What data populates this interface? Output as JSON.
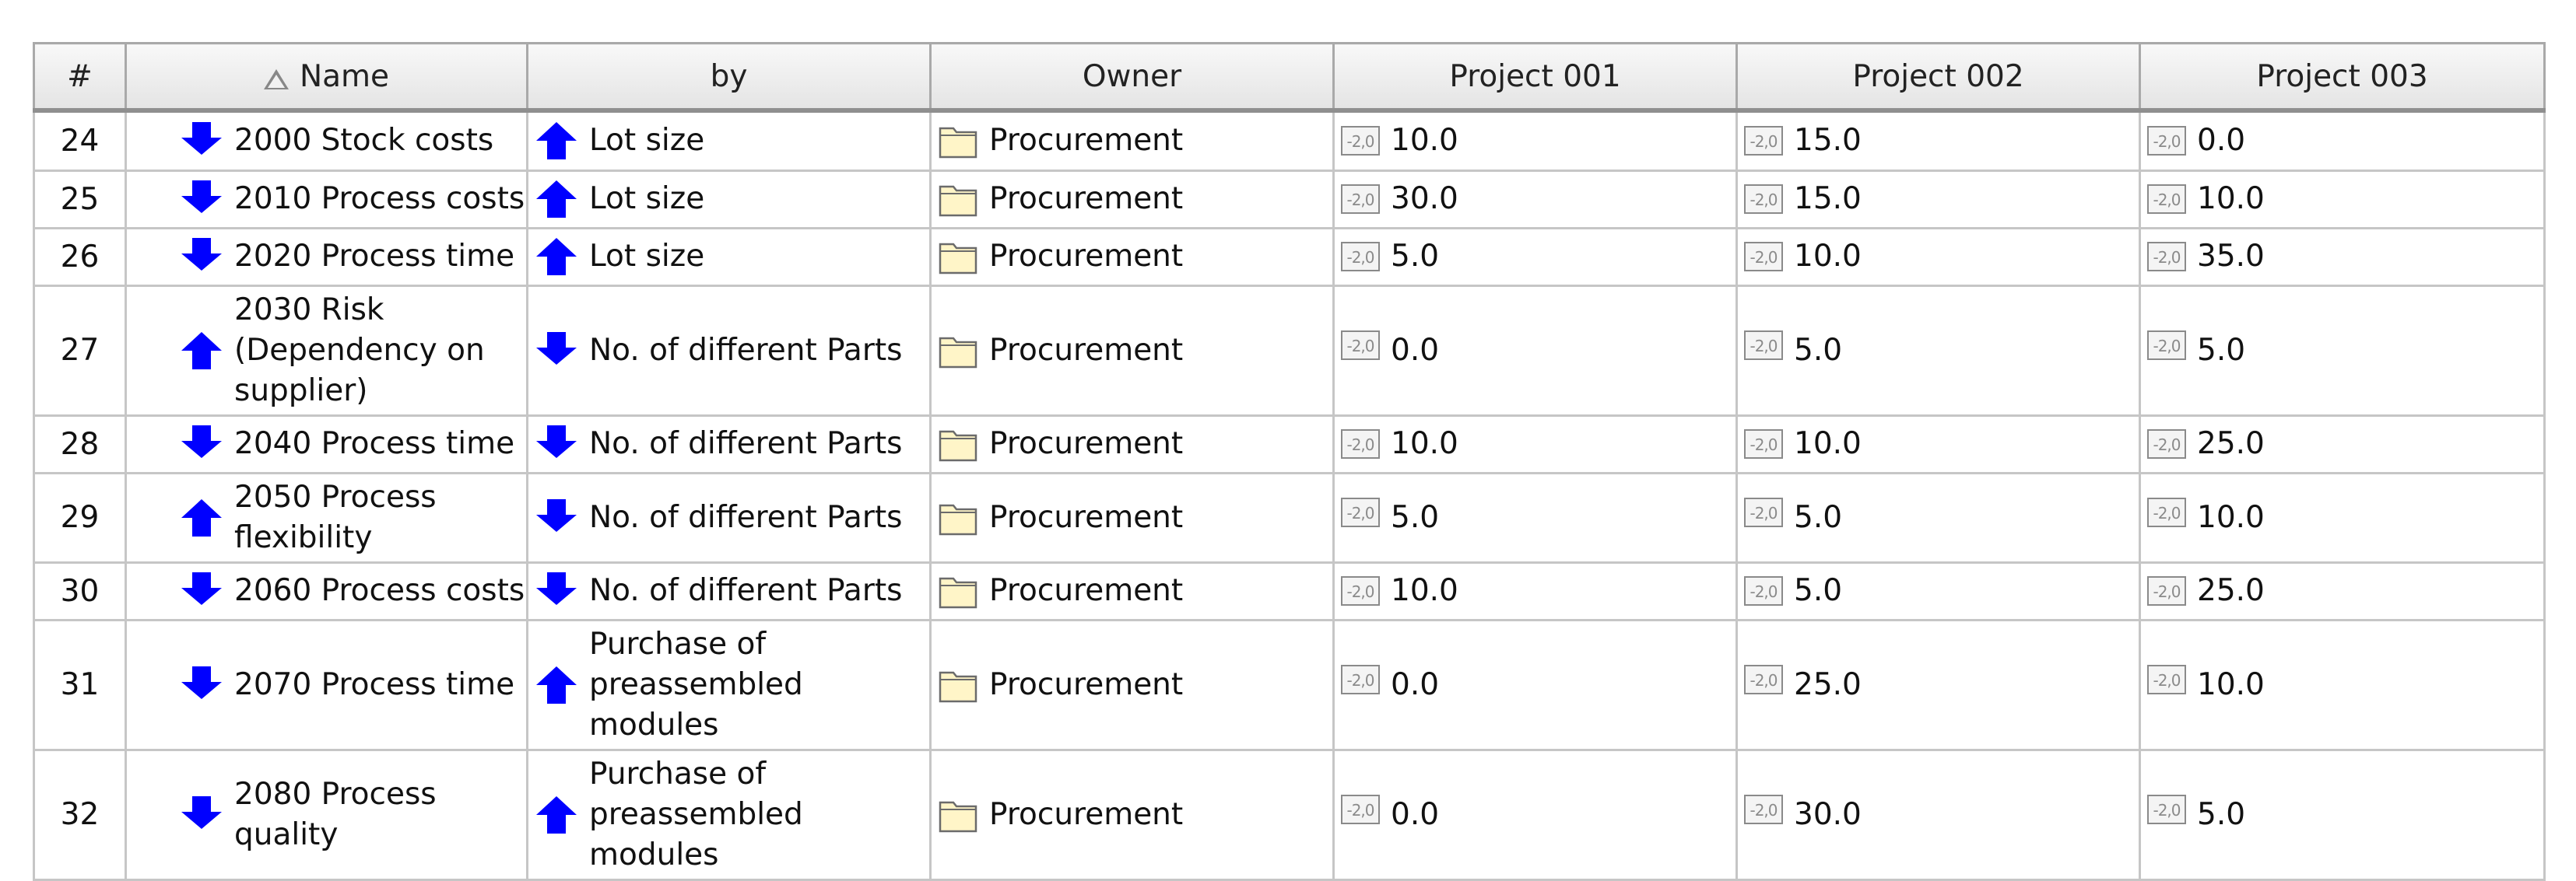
{
  "table": {
    "headers": {
      "num": "#",
      "name": "Name",
      "by": "by",
      "owner": "Owner",
      "p1": "Project 001",
      "p2": "Project 002",
      "p3": "Project 003"
    },
    "value_icon_label": "-2,0",
    "rows": [
      {
        "num": "24",
        "name": "2000 Stock costs",
        "name_dir": "down",
        "by": "Lot size",
        "by_dir": "up",
        "owner": "Procurement",
        "p1": "10.0",
        "p2": "15.0",
        "p3": "0.0"
      },
      {
        "num": "25",
        "name": "2010 Process costs",
        "name_dir": "down",
        "by": "Lot size",
        "by_dir": "up",
        "owner": "Procurement",
        "p1": "30.0",
        "p2": "15.0",
        "p3": "10.0"
      },
      {
        "num": "26",
        "name": "2020 Process time",
        "name_dir": "down",
        "by": "Lot size",
        "by_dir": "up",
        "owner": "Procurement",
        "p1": "5.0",
        "p2": "10.0",
        "p3": "35.0"
      },
      {
        "num": "27",
        "name": "2030 Risk (Dependency on supplier)",
        "name_dir": "up",
        "by": "No. of different Parts",
        "by_dir": "down",
        "owner": "Procurement",
        "p1": "0.0",
        "p2": "5.0",
        "p3": "5.0"
      },
      {
        "num": "28",
        "name": "2040 Process time",
        "name_dir": "down",
        "by": "No. of different Parts",
        "by_dir": "down",
        "owner": "Procurement",
        "p1": "10.0",
        "p2": "10.0",
        "p3": "25.0"
      },
      {
        "num": "29",
        "name": "2050 Process flexibility",
        "name_dir": "up",
        "by": "No. of different Parts",
        "by_dir": "down",
        "owner": "Procurement",
        "p1": "5.0",
        "p2": "5.0",
        "p3": "10.0"
      },
      {
        "num": "30",
        "name": "2060 Process costs",
        "name_dir": "down",
        "by": "No. of different Parts",
        "by_dir": "down",
        "owner": "Procurement",
        "p1": "10.0",
        "p2": "5.0",
        "p3": "25.0"
      },
      {
        "num": "31",
        "name": "2070 Process time",
        "name_dir": "down",
        "by": "Purchase of preassembled modules",
        "by_dir": "up",
        "owner": "Procurement",
        "p1": "0.0",
        "p2": "25.0",
        "p3": "10.0"
      },
      {
        "num": "32",
        "name": "2080 Process quality",
        "name_dir": "down",
        "by": "Purchase of preassembled modules",
        "by_dir": "up",
        "owner": "Procurement",
        "p1": "0.0",
        "p2": "30.0",
        "p3": "5.0"
      }
    ]
  },
  "icons": {
    "arrow_color": "#0000ff",
    "folder_fill": "#fff5c8",
    "folder_stroke": "#6b6b6b",
    "up": "arrow-up-icon",
    "down": "arrow-down-icon",
    "owner": "folder-icon",
    "value": "value-box-icon",
    "sort": "sort-ascending-icon"
  }
}
